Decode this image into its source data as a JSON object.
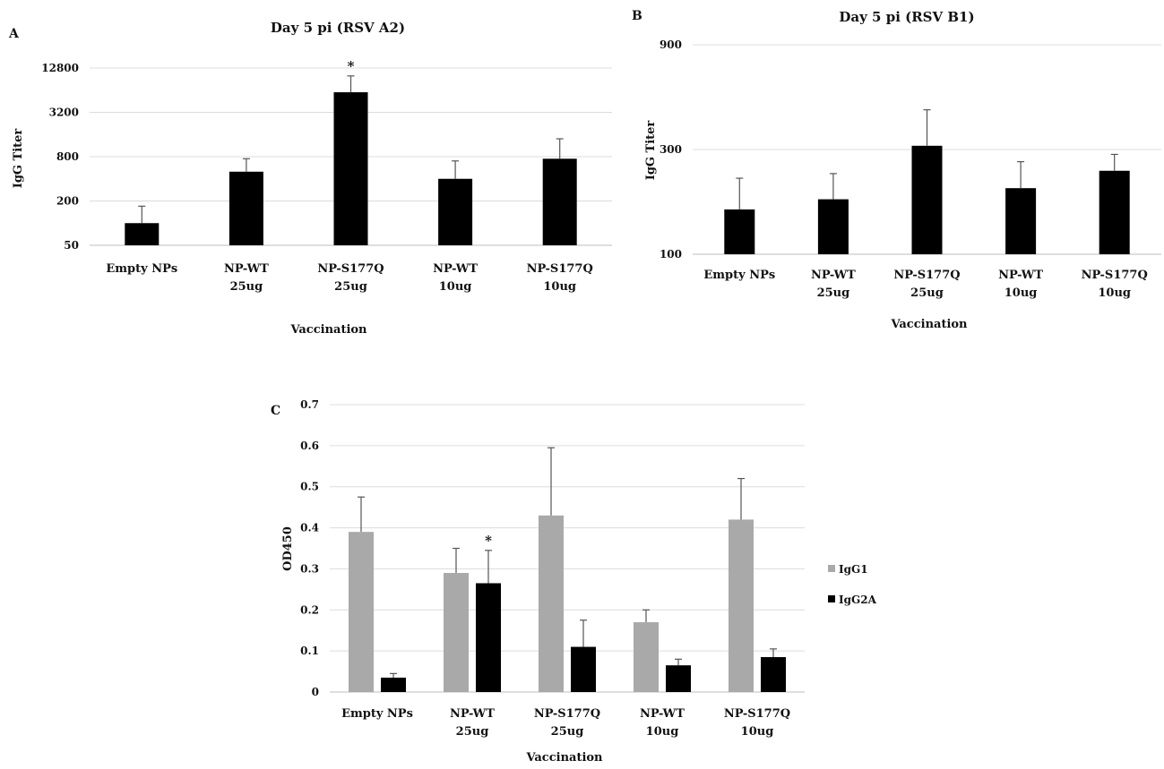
{
  "chart_data": [
    {
      "panel": "A",
      "type": "bar",
      "title": "Day 5 pi (RSV A2)",
      "xlabel": "Vaccination",
      "ylabel": "IgG Titer",
      "yscale": "log2",
      "ylim": [
        50,
        12800
      ],
      "yticks": [
        "50",
        "200",
        "800",
        "3200",
        "12800"
      ],
      "categories": [
        [
          "Empty NPs"
        ],
        [
          "NP-WT",
          "25ug"
        ],
        [
          "NP-S177Q",
          "25ug"
        ],
        [
          "NP-WT",
          "10ug"
        ],
        [
          "NP-S177Q",
          "10ug"
        ]
      ],
      "values": [
        100,
        500,
        6000,
        400,
        750
      ],
      "errors": [
        170,
        750,
        10000,
        700,
        1400
      ],
      "annotations": [
        {
          "category_index": 2,
          "text": "*"
        }
      ],
      "color": "#000000"
    },
    {
      "panel": "B",
      "type": "bar",
      "title": "Day 5 pi (RSV B1)",
      "xlabel": "Vaccination",
      "ylabel": "IgG Titer",
      "yscale": "log3",
      "ylim": [
        100,
        900
      ],
      "yticks": [
        "100",
        "300",
        "900"
      ],
      "categories": [
        [
          "Empty NPs"
        ],
        [
          "NP-WT",
          "25ug"
        ],
        [
          "NP-S177Q",
          "25ug"
        ],
        [
          "NP-WT",
          "10ug"
        ],
        [
          "NP-S177Q",
          "10ug"
        ]
      ],
      "values": [
        160,
        178,
        312,
        200,
        240
      ],
      "errors": [
        222,
        233,
        455,
        264,
        285
      ],
      "color": "#000000"
    },
    {
      "panel": "C",
      "type": "bar",
      "title": "",
      "xlabel": "Vaccination",
      "ylabel": "OD450",
      "ylim": [
        0,
        0.7
      ],
      "yticks": [
        "0",
        "0.1",
        "0.2",
        "0.3",
        "0.4",
        "0.5",
        "0.6",
        "0.7"
      ],
      "categories": [
        [
          "Empty NPs"
        ],
        [
          "NP-WT",
          "25ug"
        ],
        [
          "NP-S177Q",
          "25ug"
        ],
        [
          "NP-WT",
          "10ug"
        ],
        [
          "NP-S177Q",
          "10ug"
        ]
      ],
      "series": [
        {
          "name": "IgG1",
          "color": "#a9a9a9",
          "values": [
            0.39,
            0.29,
            0.43,
            0.17,
            0.42
          ],
          "errors": [
            0.475,
            0.35,
            0.595,
            0.2,
            0.52
          ]
        },
        {
          "name": "IgG2A",
          "color": "#000000",
          "values": [
            0.035,
            0.265,
            0.11,
            0.065,
            0.085
          ],
          "errors": [
            0.045,
            0.345,
            0.175,
            0.08,
            0.105
          ]
        }
      ],
      "annotations": [
        {
          "category_index": 1,
          "series": "IgG2A",
          "text": "*"
        }
      ],
      "legend": "right"
    }
  ]
}
